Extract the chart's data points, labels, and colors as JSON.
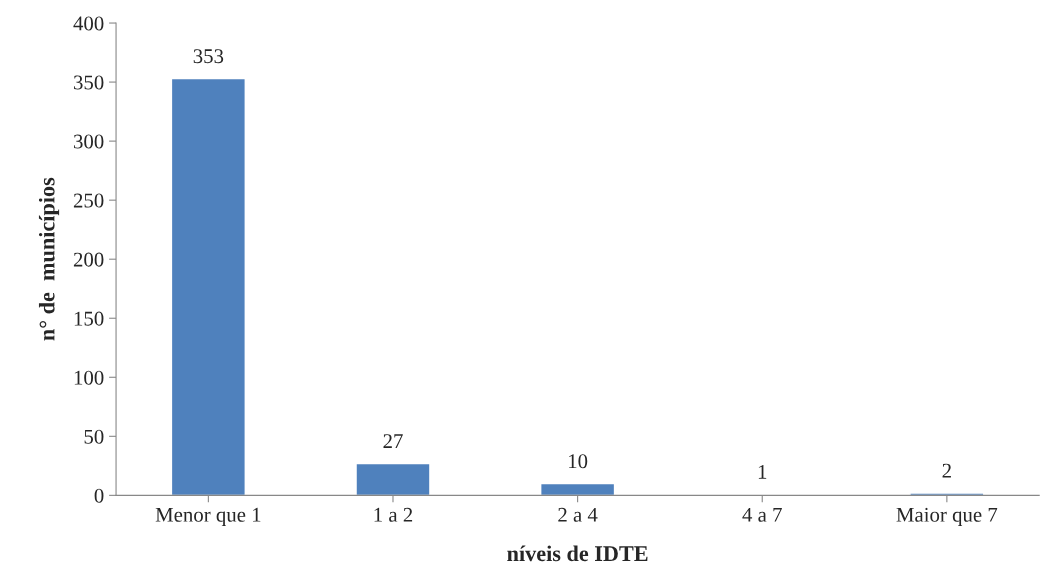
{
  "chart_data": {
    "type": "bar",
    "xlabel": "níveis de IDTE",
    "ylabel": "n° de  municípios",
    "categories": [
      "Menor que 1",
      "1 a 2",
      "2 a 4",
      "4 a 7",
      "Maior que 7"
    ],
    "values": [
      353,
      27,
      10,
      1,
      2
    ],
    "color": "#4f81bd",
    "ylim": [
      0,
      400
    ],
    "yticks": [
      0,
      50,
      100,
      150,
      200,
      250,
      300,
      350,
      400
    ],
    "grid": false,
    "data_labels": true
  }
}
